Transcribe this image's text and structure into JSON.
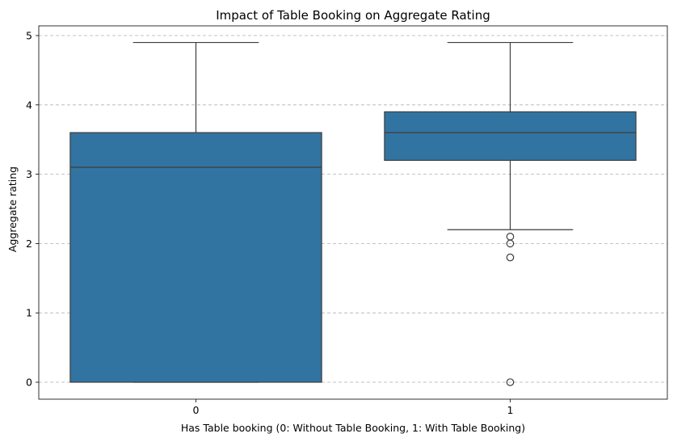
{
  "chart_data": {
    "type": "boxplot",
    "title": "Impact of Table Booking on Aggregate Rating",
    "xlabel": "Has Table booking (0: Without Table Booking, 1: With Table Booking)",
    "ylabel": "Aggregate rating",
    "categories": [
      "0",
      "1"
    ],
    "yticks": [
      "0",
      "1",
      "2",
      "3",
      "4",
      "5"
    ],
    "ylim": [
      -0.25,
      5.15
    ],
    "grid": "y-dashed",
    "box_color": "#3274a1",
    "boxes": [
      {
        "category": "0",
        "whisker_low": 0.0,
        "q1": 0.0,
        "median": 3.1,
        "q3": 3.6,
        "whisker_high": 4.9,
        "outliers": []
      },
      {
        "category": "1",
        "whisker_low": 2.2,
        "q1": 3.2,
        "median": 3.6,
        "q3": 3.9,
        "whisker_high": 4.9,
        "outliers": [
          2.1,
          2.0,
          1.8,
          0.0
        ]
      }
    ]
  }
}
